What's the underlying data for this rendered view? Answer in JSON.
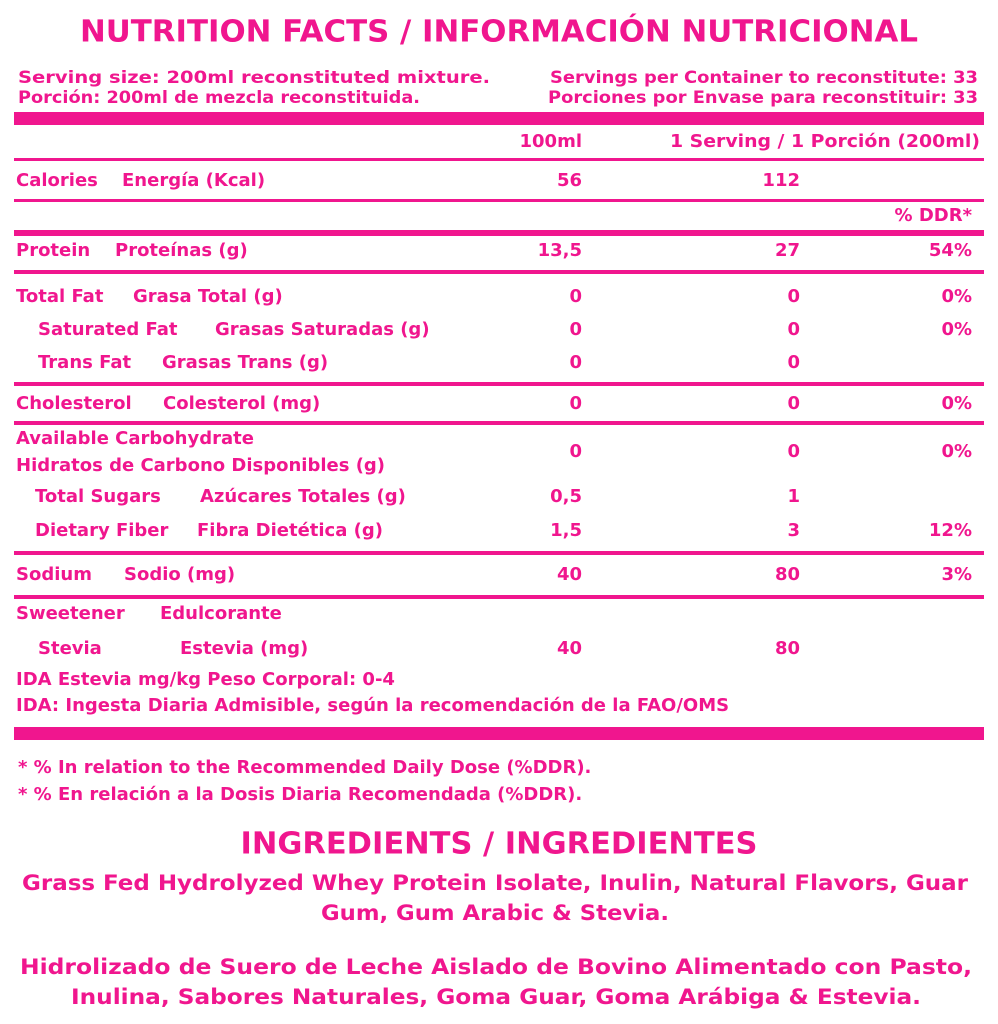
{
  "header": {
    "title": "NUTRITION FACTS / INFORMACIÓN NUTRICIONAL"
  },
  "serving": {
    "size_en": "Serving size: 200ml reconstituted mixture.",
    "size_es": "Porción: 200ml de mezcla reconstituida.",
    "servings_en": "Servings per Container to reconstitute: 33",
    "servings_es": "Porciones por Envase para reconstituir: 33"
  },
  "table": {
    "columns": [
      "100ml",
      "1 Serving / 1 Porción (200ml)"
    ],
    "ddr_header": "% DDR*",
    "rows": [
      {
        "label_en": "Calories",
        "label_es": "Energía (Kcal)",
        "values": [
          "56",
          "112",
          null
        ]
      },
      {
        "label_en": "Protein",
        "label_es": "Proteínas (g)",
        "values": [
          "13,5",
          "27",
          "54%"
        ]
      },
      {
        "label_en": "Total Fat",
        "label_es": "Grasa Total (g)",
        "values": [
          "0",
          "0",
          "0%"
        ]
      },
      {
        "label_en": "Saturated Fat",
        "label_es": "Grasas Saturadas (g)",
        "values": [
          "0",
          "0",
          "0%"
        ]
      },
      {
        "label_en": "Trans Fat",
        "label_es": "Grasas Trans (g)",
        "values": [
          "0",
          "0",
          null
        ]
      },
      {
        "label_en": "Cholesterol",
        "label_es": "Colesterol (mg)",
        "values": [
          "0",
          "0",
          "0%"
        ]
      },
      {
        "label_en": "Available Carbohydrate",
        "label_es": "Hidratos de Carbono Disponibles (g)",
        "values": [
          "0",
          "0",
          "0%"
        ]
      },
      {
        "label_en": "Total Sugars",
        "label_es": "Azúcares Totales (g)",
        "values": [
          "0,5",
          "1",
          null
        ]
      },
      {
        "label_en": "Dietary Fiber",
        "label_es": "Fibra Dietética (g)",
        "values": [
          "1,5",
          "3",
          "12%"
        ]
      },
      {
        "label_en": "Sodium",
        "label_es": "Sodio (mg)",
        "values": [
          "40",
          "80",
          "3%"
        ]
      },
      {
        "label_en": "Sweetener",
        "label_es": "Edulcorante",
        "values": [
          null,
          null,
          null
        ]
      },
      {
        "label_en": "Stevia",
        "label_es": "Estevia (mg)",
        "values": [
          "40",
          "80",
          null
        ]
      }
    ],
    "notes": [
      "IDA Estevia mg/kg Peso Corporal: 0-4",
      "IDA: Ingesta Diaria Admisible, según la recomendación de la FAO/OMS"
    ]
  },
  "footnotes": [
    "* % In relation to the Recommended Daily Dose (%DDR).",
    "* % En relación a la Dosis Diaria Recomendada (%DDR)."
  ],
  "ingredients": {
    "title": "INGREDIENTS / INGREDIENTES",
    "en": [
      "Grass Fed Hydrolyzed Whey Protein Isolate, Inulin, Natural Flavors, Guar",
      "Gum, Gum Arabic & Stevia."
    ],
    "es": [
      "Hidrolizado de Suero de Leche Aislado de Bovino Alimentado con Pasto,",
      "Inulina, Sabores Naturales, Goma Guar, Goma Arábiga & Estevia."
    ]
  }
}
